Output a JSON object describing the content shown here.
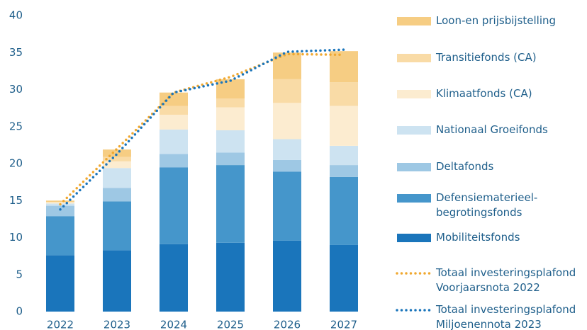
{
  "chart_data": {
    "type": "bar",
    "stacked": true,
    "categories": [
      "2022",
      "2023",
      "2024",
      "2025",
      "2026",
      "2027"
    ],
    "ylim": [
      0,
      40
    ],
    "yticks": [
      0,
      5,
      10,
      15,
      20,
      25,
      30,
      35,
      40
    ],
    "grid": false,
    "legend": "right",
    "series": [
      {
        "name": "Mobiliteitsfonds",
        "color": "#1a75bb",
        "values": [
          7.6,
          8.3,
          9.1,
          9.3,
          9.6,
          9.0
        ]
      },
      {
        "name": "Defensiematerieel-\nbegrotingsfonds",
        "color": "#4596cb",
        "values": [
          5.3,
          6.6,
          10.4,
          10.5,
          9.3,
          9.2
        ]
      },
      {
        "name": "Deltafonds",
        "color": "#9ec8e4",
        "values": [
          1.4,
          1.8,
          1.8,
          1.7,
          1.6,
          1.6
        ]
      },
      {
        "name": "Nationaal Groeifonds",
        "color": "#cde3f1",
        "values": [
          0.3,
          2.7,
          3.3,
          3.0,
          2.8,
          2.6
        ]
      },
      {
        "name": "Klimaatfonds (CA)",
        "color": "#fcecd0",
        "values": [
          0.2,
          0.9,
          2.0,
          3.1,
          4.9,
          5.4
        ]
      },
      {
        "name": "Transitiefonds (CA)",
        "color": "#f9dba6",
        "values": [
          0,
          0.6,
          1.2,
          1.2,
          3.2,
          3.2
        ]
      },
      {
        "name": "Loon-en prijsbijstelling",
        "color": "#f6cd83",
        "values": [
          0.2,
          1.0,
          1.8,
          2.6,
          3.6,
          4.2
        ]
      }
    ],
    "lines": [
      {
        "name": "Totaal investeringsplafond\nVoorjaarsnota 2022",
        "color": "#f0a830",
        "style": "dotted",
        "values": [
          14.5,
          22.0,
          29.6,
          31.7,
          34.8,
          34.7
        ]
      },
      {
        "name": "Totaal investeringsplafond\nMiljoenennota 2023",
        "color": "#1a75bb",
        "style": "dotted",
        "values": [
          13.8,
          21.3,
          29.6,
          31.2,
          35.1,
          35.4
        ]
      }
    ]
  }
}
